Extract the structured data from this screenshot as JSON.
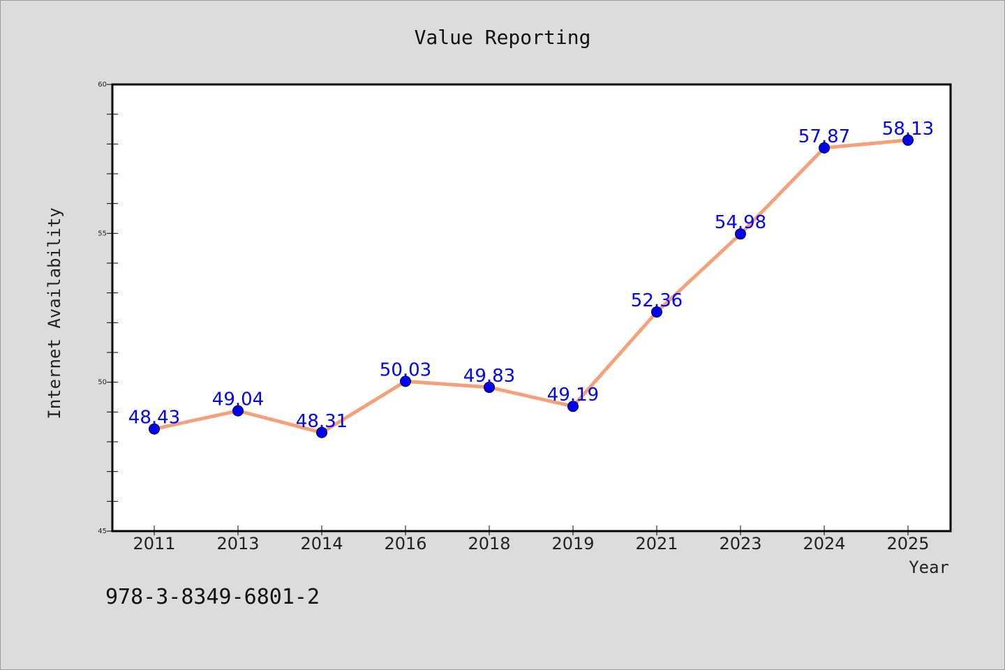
{
  "chart_data": {
    "type": "line",
    "title": "Value Reporting",
    "xlabel": "Year",
    "ylabel": "Internet Availability",
    "categories": [
      "2011",
      "2013",
      "2014",
      "2016",
      "2018",
      "2019",
      "2021",
      "2023",
      "2024",
      "2025"
    ],
    "series": [
      {
        "values": [
          48.43,
          49.04,
          48.31,
          50.03,
          49.83,
          49.19,
          52.36,
          54.98,
          57.87,
          58.13
        ],
        "labels": [
          "48.43",
          "49.04",
          "48.31",
          "50.03",
          "49.83",
          "49.19",
          "52.36",
          "54.98",
          "57.87",
          "58.13"
        ],
        "line_color": "#f4a07a",
        "marker_color": "#0000ff"
      }
    ],
    "ylim": [
      45,
      60
    ],
    "yticks": [
      "45",
      "50",
      "55",
      "60"
    ],
    "yticks_minor_step": 1,
    "grid": false,
    "legend": "none"
  },
  "footnote": "978-3-8349-6801-2",
  "colors": {
    "background": "#dcdcdc",
    "plot_background": "#ffffff",
    "line": "#f4a07a",
    "markers": "#0000ff",
    "data_labels": "#0000ff"
  }
}
